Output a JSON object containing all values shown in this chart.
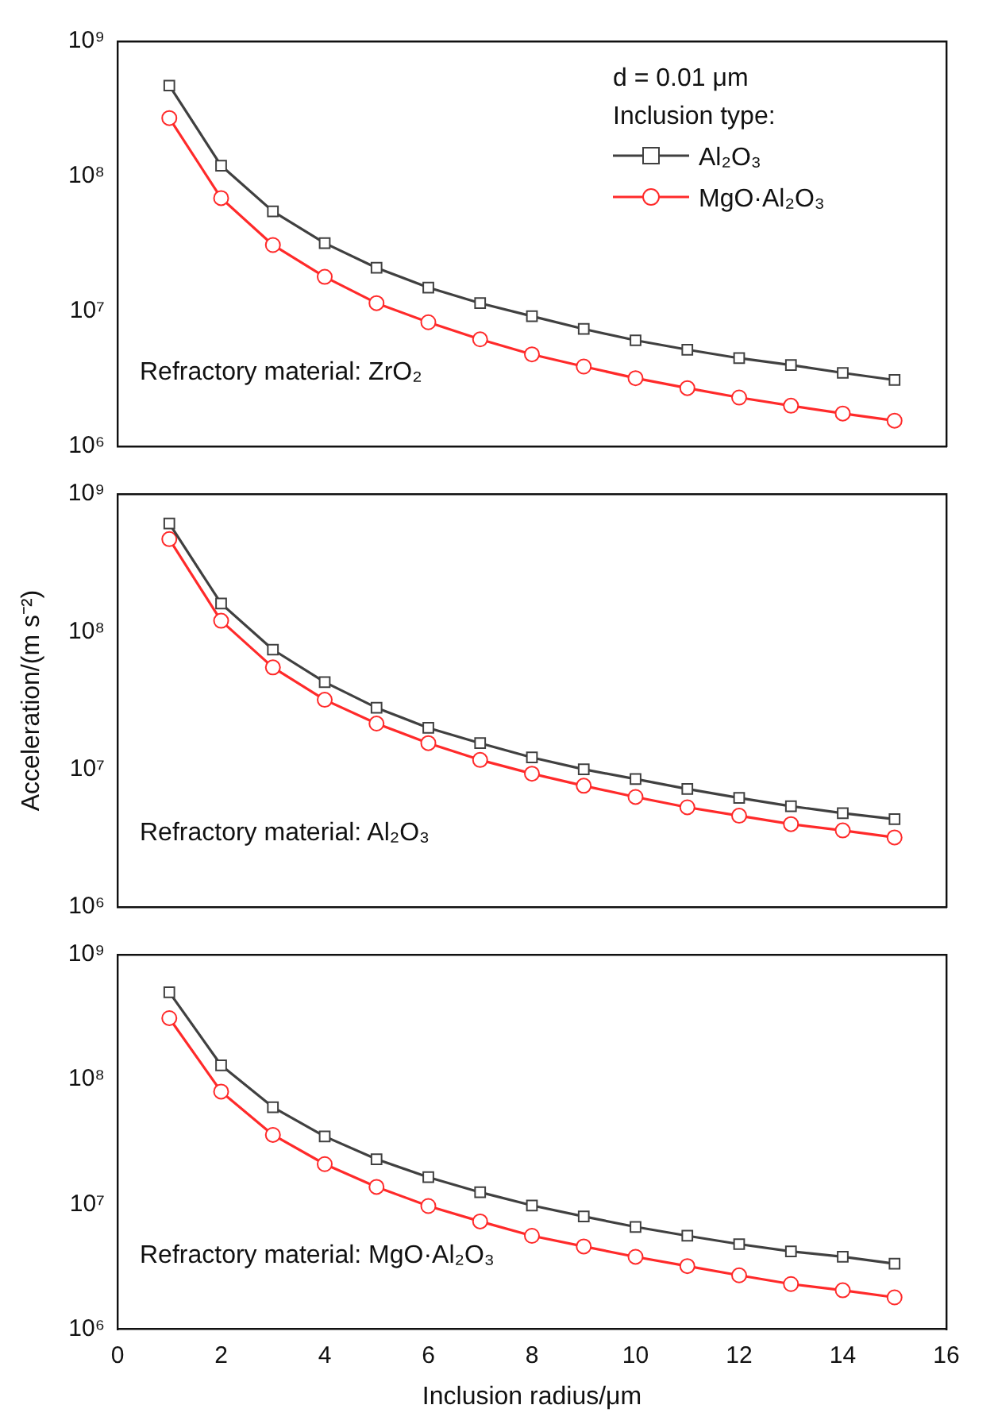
{
  "chart_data": [
    {
      "type": "line",
      "x": [
        1,
        2,
        3,
        4,
        5,
        6,
        7,
        8,
        9,
        10,
        11,
        12,
        13,
        14,
        15
      ],
      "xlim": [
        0,
        16
      ],
      "xticks": [
        0,
        2,
        4,
        6,
        8,
        10,
        12,
        14,
        16
      ],
      "ylim": [
        1000000,
        1000000000
      ],
      "yticks": [
        {
          "value": 1000000,
          "label": "10⁶"
        },
        {
          "value": 10000000,
          "label": "10⁷"
        },
        {
          "value": 100000000,
          "label": "10⁸"
        },
        {
          "value": 1000000000,
          "label": "10⁹"
        }
      ],
      "log": "y",
      "tick_labels": "y",
      "grid": false,
      "legend": "top right",
      "legend_title": "Inclusion type:",
      "annotations": [
        "d = 0.01 μm",
        "Refractory material: ZrO₂"
      ],
      "series": [
        {
          "name": "Al₂O₃",
          "color": "#404040",
          "marker": "square",
          "values": [
            470000000,
            120000000,
            55000000,
            32000000,
            21000000,
            15000000,
            11500000,
            9200000,
            7400000,
            6100000,
            5200000,
            4500000,
            4000000,
            3500000,
            3100000
          ]
        },
        {
          "name": "MgO·Al₂O₃",
          "color": "#ff2a2a",
          "marker": "circle",
          "values": [
            270000000,
            69000000,
            31000000,
            18000000,
            11500000,
            8300000,
            6200000,
            4800000,
            3900000,
            3200000,
            2700000,
            2300000,
            2000000,
            1750000,
            1550000
          ]
        }
      ]
    },
    {
      "type": "line",
      "x": [
        1,
        2,
        3,
        4,
        5,
        6,
        7,
        8,
        9,
        10,
        11,
        12,
        13,
        14,
        15
      ],
      "xlim": [
        0,
        16
      ],
      "xticks": [
        0,
        2,
        4,
        6,
        8,
        10,
        12,
        14,
        16
      ],
      "ylim": [
        1000000,
        1000000000
      ],
      "yticks": [
        {
          "value": 1000000,
          "label": "10⁶"
        },
        {
          "value": 10000000,
          "label": "10⁷"
        },
        {
          "value": 100000000,
          "label": "10⁸"
        },
        {
          "value": 1000000000,
          "label": "10⁹"
        }
      ],
      "log": "y",
      "tick_labels": "y",
      "grid": false,
      "ylabel": "Acceleration/(m s⁻²)",
      "annotations": [
        "Refractory material: Al₂O₃"
      ],
      "series": [
        {
          "color": "#404040",
          "marker": "square",
          "values": [
            610000000,
            160000000,
            74000000,
            43000000,
            28000000,
            20000000,
            15500000,
            12200000,
            10000000,
            8500000,
            7200000,
            6200000,
            5400000,
            4800000,
            4350000
          ]
        },
        {
          "color": "#ff2a2a",
          "marker": "circle",
          "values": [
            470000000,
            120000000,
            55000000,
            32000000,
            21500000,
            15500000,
            11700000,
            9300000,
            7600000,
            6300000,
            5300000,
            4600000,
            4000000,
            3600000,
            3200000
          ]
        }
      ]
    },
    {
      "type": "line",
      "x": [
        1,
        2,
        3,
        4,
        5,
        6,
        7,
        8,
        9,
        10,
        11,
        12,
        13,
        14,
        15
      ],
      "xlim": [
        0,
        16
      ],
      "xticks": [
        0,
        2,
        4,
        6,
        8,
        10,
        12,
        14,
        16
      ],
      "ylim": [
        1000000,
        1000000000
      ],
      "yticks": [
        {
          "value": 1000000,
          "label": "10⁶"
        },
        {
          "value": 10000000,
          "label": "10⁷"
        },
        {
          "value": 100000000,
          "label": "10⁸"
        },
        {
          "value": 1000000000,
          "label": "10⁹"
        }
      ],
      "log": "y",
      "grid": false,
      "xlabel": "Inclusion radius/μm",
      "annotations": [
        "Refractory material: MgO·Al₂O₃"
      ],
      "series": [
        {
          "color": "#404040",
          "marker": "square",
          "values": [
            500000000,
            130000000,
            60000000,
            35000000,
            23000000,
            16500000,
            12500000,
            9800000,
            8000000,
            6600000,
            5600000,
            4800000,
            4200000,
            3800000,
            3350000
          ]
        },
        {
          "color": "#ff2a2a",
          "marker": "circle",
          "values": [
            310000000,
            80000000,
            36000000,
            21000000,
            13800000,
            9700000,
            7300000,
            5600000,
            4600000,
            3800000,
            3200000,
            2700000,
            2300000,
            2050000,
            1800000
          ]
        }
      ]
    }
  ]
}
